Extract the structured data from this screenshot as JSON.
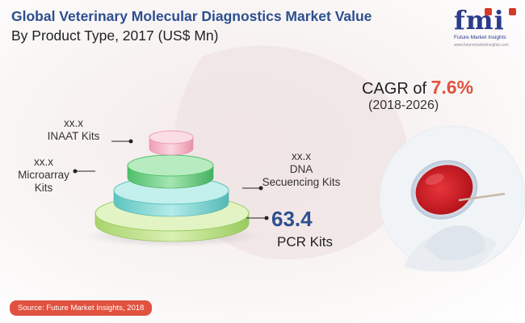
{
  "header": {
    "title": "Global Veterinary Molecular Diagnostics Market Value",
    "subtitle": "By Product Type, 2017 (US$ Mn)"
  },
  "logo": {
    "word": "fmi",
    "name": "Future Market Insights",
    "url": "www.futuremarketinsights.com"
  },
  "cagr": {
    "prefix": "CAGR of",
    "value": "7.6%",
    "period": "(2018-2026)"
  },
  "source": "Source: Future Market Insights, 2018",
  "colors": {
    "title": "#2c4f8f",
    "accent": "#e0523f",
    "pcr": "#c9e89a",
    "dna": "#8cd8d4",
    "microarray": "#7fd191",
    "inaat": "#f4b4c4"
  },
  "chart_data": {
    "type": "stacked-cylinder",
    "title": "Global Veterinary Molecular Diagnostics Market Value",
    "subtitle": "By Product Type, 2017 (US$ Mn)",
    "categories": [
      "PCR Kits",
      "DNA Secuencing Kits",
      "Microarray Kits",
      "INAAT Kits"
    ],
    "values": [
      "63.4",
      "xx.x",
      "xx.x",
      "xx.x"
    ],
    "labels": {
      "pcr": {
        "value": "63.4",
        "name": "PCR Kits"
      },
      "dna": {
        "value": "xx.x",
        "line1": "DNA",
        "line2": "Secuencing Kits"
      },
      "microarray": {
        "value": "xx.x",
        "line1": "Microarray",
        "line2": "Kits"
      },
      "inaat": {
        "value": "xx.x",
        "line1": "INAAT Kits"
      }
    }
  }
}
